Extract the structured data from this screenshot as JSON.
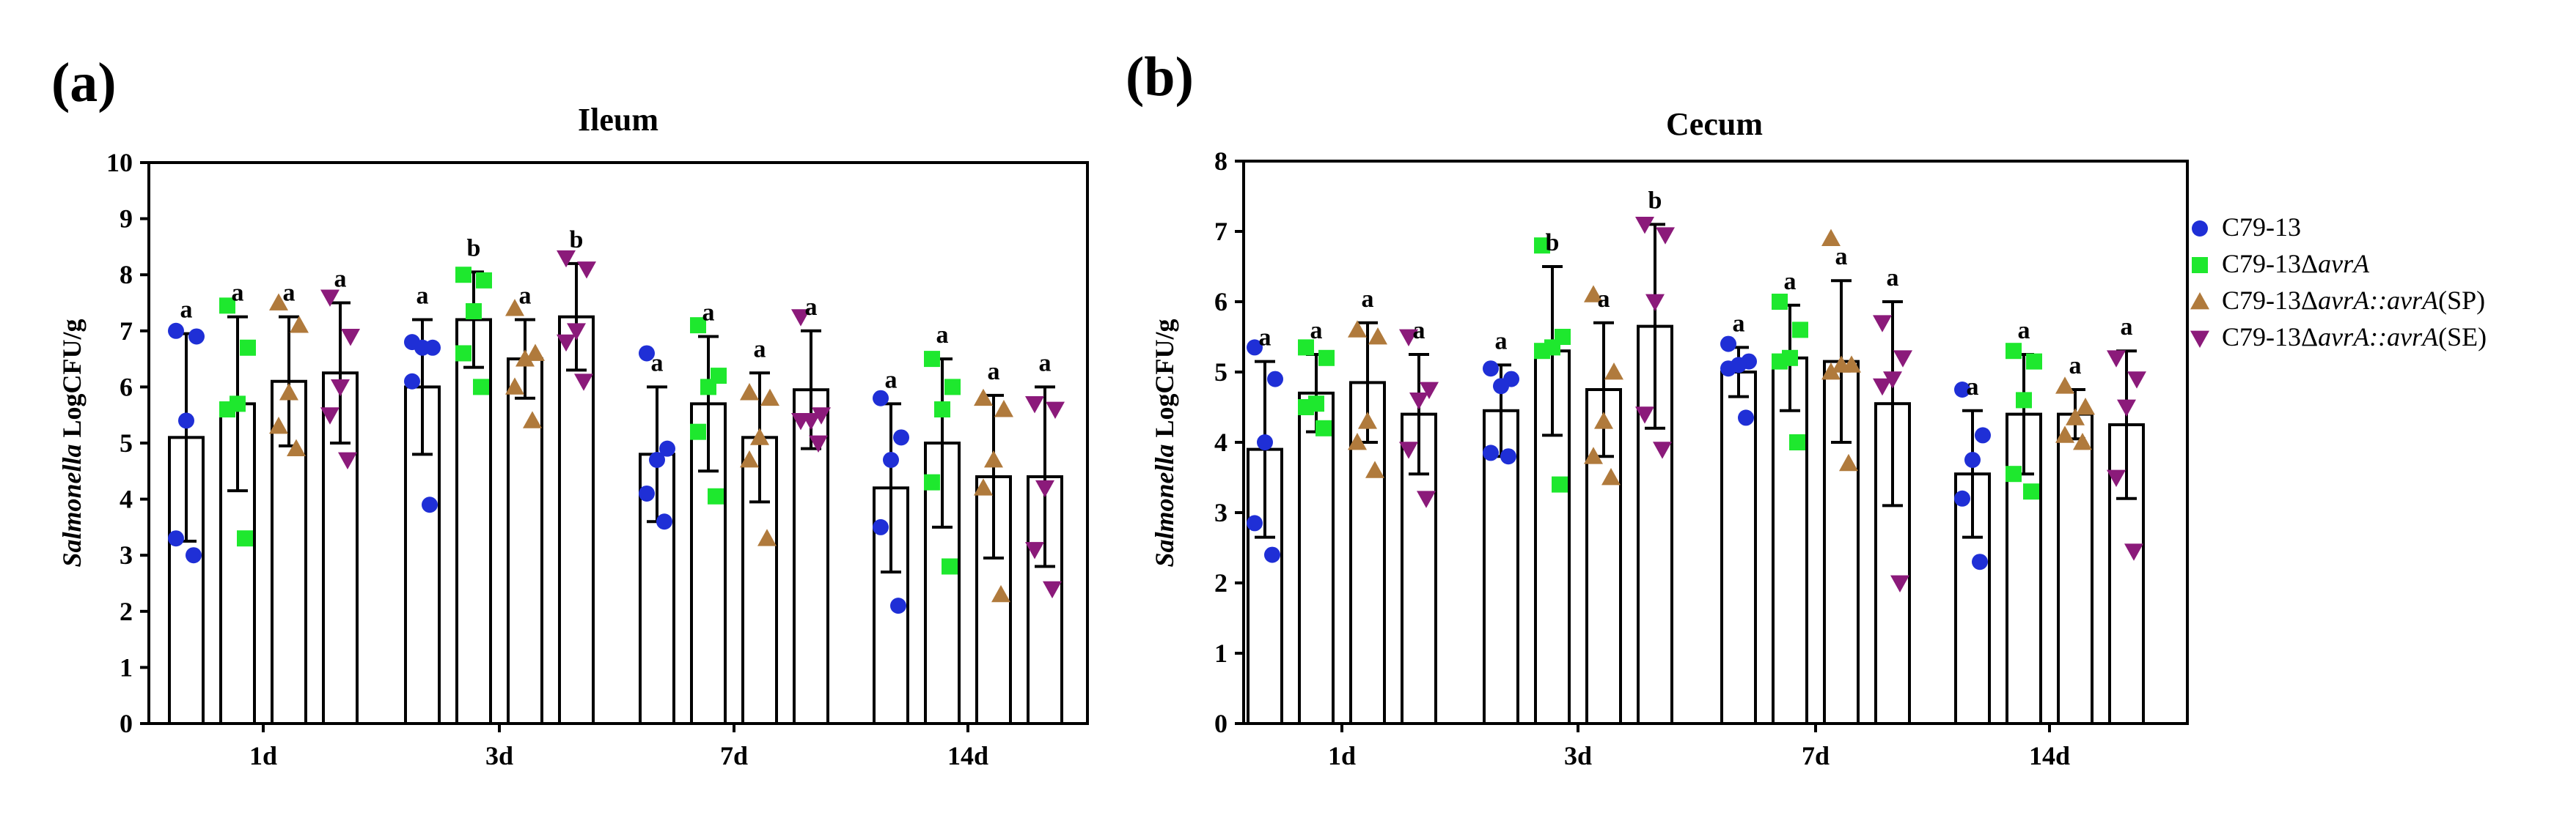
{
  "chart_data": [
    {
      "panel": "(a)",
      "type": "bar",
      "title": "Ileum",
      "ylabel_italic": "Salmonella",
      "ylabel_rest": "LogCFU/g",
      "ylim": [
        0,
        10
      ],
      "yticks": [
        0,
        1,
        2,
        3,
        4,
        5,
        6,
        7,
        8,
        9,
        10
      ],
      "categories": [
        "1d",
        "3d",
        "7d",
        "14d"
      ],
      "series": [
        {
          "name": "C79-13",
          "means": [
            5.1,
            6.0,
            4.8,
            4.2
          ],
          "sd": [
            1.85,
            1.2,
            1.2,
            1.5
          ],
          "letters": [
            "a",
            "a",
            "a",
            "a"
          ],
          "points": [
            [
              7.0,
              6.9,
              5.4,
              3.3,
              3.0
            ],
            [
              6.8,
              6.7,
              6.7,
              6.1,
              3.9
            ],
            [
              6.6,
              4.9,
              4.7,
              4.1,
              3.6
            ],
            [
              5.8,
              5.1,
              4.7,
              3.5,
              2.1
            ]
          ]
        },
        {
          "name": "C79-13ΔavrA",
          "means": [
            5.7,
            7.2,
            5.7,
            5.0
          ],
          "sd": [
            1.55,
            0.85,
            1.2,
            1.5
          ],
          "letters": [
            "a",
            "b",
            "a",
            "a"
          ],
          "points": [
            [
              7.45,
              6.7,
              5.7,
              5.6,
              3.3
            ],
            [
              8.0,
              7.9,
              7.35,
              6.6,
              6.0
            ],
            [
              7.1,
              6.2,
              6.0,
              5.2,
              4.05
            ],
            [
              6.5,
              6.0,
              5.6,
              4.3,
              2.8
            ]
          ]
        },
        {
          "name": "C79-13ΔavrA::avrA(SP)",
          "means": [
            6.1,
            6.5,
            5.1,
            4.4
          ],
          "sd": [
            1.15,
            0.7,
            1.15,
            1.45
          ],
          "letters": [
            "a",
            "a",
            "a",
            "a"
          ],
          "points": [
            [
              7.5,
              7.1,
              5.9,
              5.3,
              4.9
            ],
            [
              7.4,
              6.6,
              6.5,
              6.0,
              5.4
            ],
            [
              5.9,
              5.8,
              5.1,
              4.7,
              3.3
            ],
            [
              5.8,
              5.6,
              4.7,
              4.2,
              2.3
            ]
          ]
        },
        {
          "name": "C79-13ΔavrA::avrA(SE)",
          "means": [
            6.25,
            7.25,
            5.95,
            4.4
          ],
          "sd": [
            1.25,
            0.95,
            1.05,
            1.6
          ],
          "letters": [
            "a",
            "b",
            "a",
            "a"
          ],
          "points": [
            [
              7.6,
              6.9,
              6.0,
              5.5,
              4.7
            ],
            [
              8.3,
              8.1,
              7.0,
              6.8,
              6.1
            ],
            [
              7.25,
              5.5,
              5.4,
              5.4,
              5.0
            ],
            [
              5.7,
              5.6,
              4.2,
              3.1,
              2.4
            ]
          ]
        }
      ]
    },
    {
      "panel": "(b)",
      "type": "bar",
      "title": "Cecum",
      "ylabel_italic": "Salmonella",
      "ylabel_rest": "LogCFU/g",
      "ylim": [
        0,
        8
      ],
      "yticks": [
        0,
        1,
        2,
        3,
        4,
        5,
        6,
        7,
        8
      ],
      "categories": [
        "1d",
        "3d",
        "7d",
        "14d"
      ],
      "series": [
        {
          "name": "C79-13",
          "means": [
            3.9,
            4.45,
            5.0,
            3.55
          ],
          "sd": [
            1.25,
            0.65,
            0.35,
            0.9
          ],
          "letters": [
            "a",
            "a",
            "a",
            "a"
          ],
          "points": [
            [
              5.35,
              4.9,
              4.0,
              2.85,
              2.4
            ],
            [
              5.05,
              4.9,
              4.8,
              3.85,
              3.8
            ],
            [
              5.4,
              5.15,
              5.1,
              5.05,
              4.35
            ],
            [
              4.75,
              4.1,
              3.75,
              3.2,
              2.3
            ]
          ]
        },
        {
          "name": "C79-13ΔavrA",
          "means": [
            4.7,
            5.3,
            5.2,
            4.4
          ],
          "sd": [
            0.55,
            1.2,
            0.75,
            0.85
          ],
          "letters": [
            "a",
            "b",
            "a",
            "a"
          ],
          "points": [
            [
              5.35,
              5.2,
              4.55,
              4.5,
              4.2
            ],
            [
              6.8,
              5.5,
              5.35,
              5.3,
              3.4
            ],
            [
              6.0,
              5.6,
              5.2,
              5.15,
              4.0
            ],
            [
              5.3,
              5.15,
              4.6,
              3.55,
              3.3
            ]
          ]
        },
        {
          "name": "C79-13ΔavrA::avrA(SP)",
          "means": [
            4.85,
            4.75,
            5.15,
            4.4
          ],
          "sd": [
            0.85,
            0.95,
            1.15,
            0.35
          ],
          "letters": [
            "a",
            "a",
            "a",
            "a"
          ],
          "points": [
            [
              5.6,
              5.5,
              4.3,
              4.0,
              3.6
            ],
            [
              6.1,
              5.0,
              4.3,
              3.8,
              3.5
            ],
            [
              6.9,
              5.1,
              5.1,
              5.0,
              3.7
            ],
            [
              4.8,
              4.5,
              4.35,
              4.1,
              4.0
            ]
          ]
        },
        {
          "name": "C79-13ΔavrA::avrA(SE)",
          "means": [
            4.4,
            5.65,
            4.55,
            4.25
          ],
          "sd": [
            0.85,
            1.45,
            1.45,
            1.05
          ],
          "letters": [
            "a",
            "b",
            "a",
            "a"
          ],
          "points": [
            [
              5.5,
              4.75,
              4.6,
              3.9,
              3.2
            ],
            [
              7.1,
              6.95,
              6.0,
              4.4,
              3.9
            ],
            [
              5.7,
              5.2,
              4.9,
              4.8,
              2.0
            ],
            [
              5.2,
              4.9,
              4.5,
              3.5,
              2.45
            ]
          ]
        }
      ]
    }
  ],
  "legend": [
    {
      "prefix": "C79-13",
      "italic": "",
      "suffix": "",
      "marker": "circle",
      "color": "#1f2fd6"
    },
    {
      "prefix": "C79-13Δ",
      "italic": "avrA",
      "suffix": "",
      "marker": "square",
      "color": "#1ee82e"
    },
    {
      "prefix": "C79-13Δ",
      "italic": "avrA::avrA",
      "suffix": "(SP)",
      "marker": "triangle-up",
      "color": "#b07a3c"
    },
    {
      "prefix": "C79-13Δ",
      "italic": "avrA::avrA",
      "suffix": "(SE)",
      "marker": "triangle-down",
      "color": "#8b1a7a"
    }
  ],
  "colors": {
    "C79-13": "#1f2fd6",
    "C79-13ΔavrA": "#1ee82e",
    "C79-13ΔavrA::avrA(SP)": "#b07a3c",
    "C79-13ΔavrA::avrA(SE)": "#8b1a7a"
  }
}
